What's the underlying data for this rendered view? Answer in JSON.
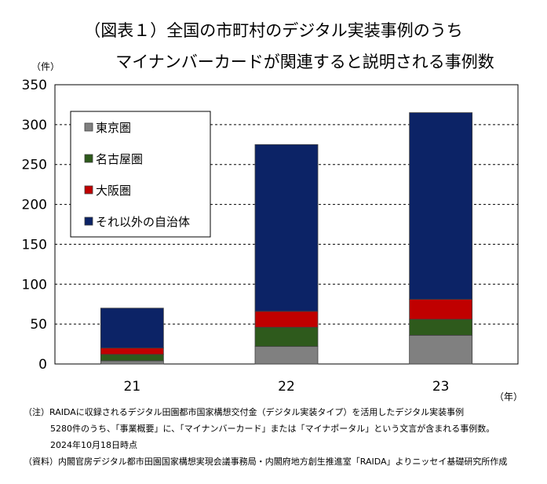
{
  "chart_data": {
    "type": "bar",
    "stacked": true,
    "title_line1": "（図表１）全国の市町村のデジタル実装事例のうち",
    "title_line2": "マイナンバーカードが関連すると説明される事例数",
    "y_unit": "（件）",
    "x_unit": "（年）",
    "categories": [
      "21",
      "22",
      "23"
    ],
    "ylim": [
      0,
      350
    ],
    "yticks": [
      0,
      50,
      100,
      150,
      200,
      250,
      300,
      350
    ],
    "grid": "dashed horizontal",
    "legend_position": "top-left",
    "series": [
      {
        "name": "東京圏",
        "color": "#808080",
        "values": [
          4,
          22,
          36
        ]
      },
      {
        "name": "名古屋圏",
        "color": "#2e5a1c",
        "values": [
          8,
          24,
          20
        ]
      },
      {
        "name": "大阪圏",
        "color": "#c00000",
        "values": [
          8,
          20,
          25
        ]
      },
      {
        "name": "それ以外の自治体",
        "color": "#0c2366",
        "values": [
          50,
          209,
          234
        ]
      }
    ]
  },
  "notes": {
    "note1": "（注）RAIDAに収録されるデジタル田園都市国家構想交付金（デジタル実装タイプ）を活用したデジタル実装事例",
    "note2": "5280件のうち、「事業概要」に、「マイナンバーカード」または「マイナポータル」という文言が含まれる事例数。",
    "note3": "2024年10月18日時点",
    "source": "（資料）内閣官房デジタル都市田園国家構想実現会議事務局・内閣府地方創生推進室「RAIDA」よりニッセイ基礎研究所作成"
  }
}
